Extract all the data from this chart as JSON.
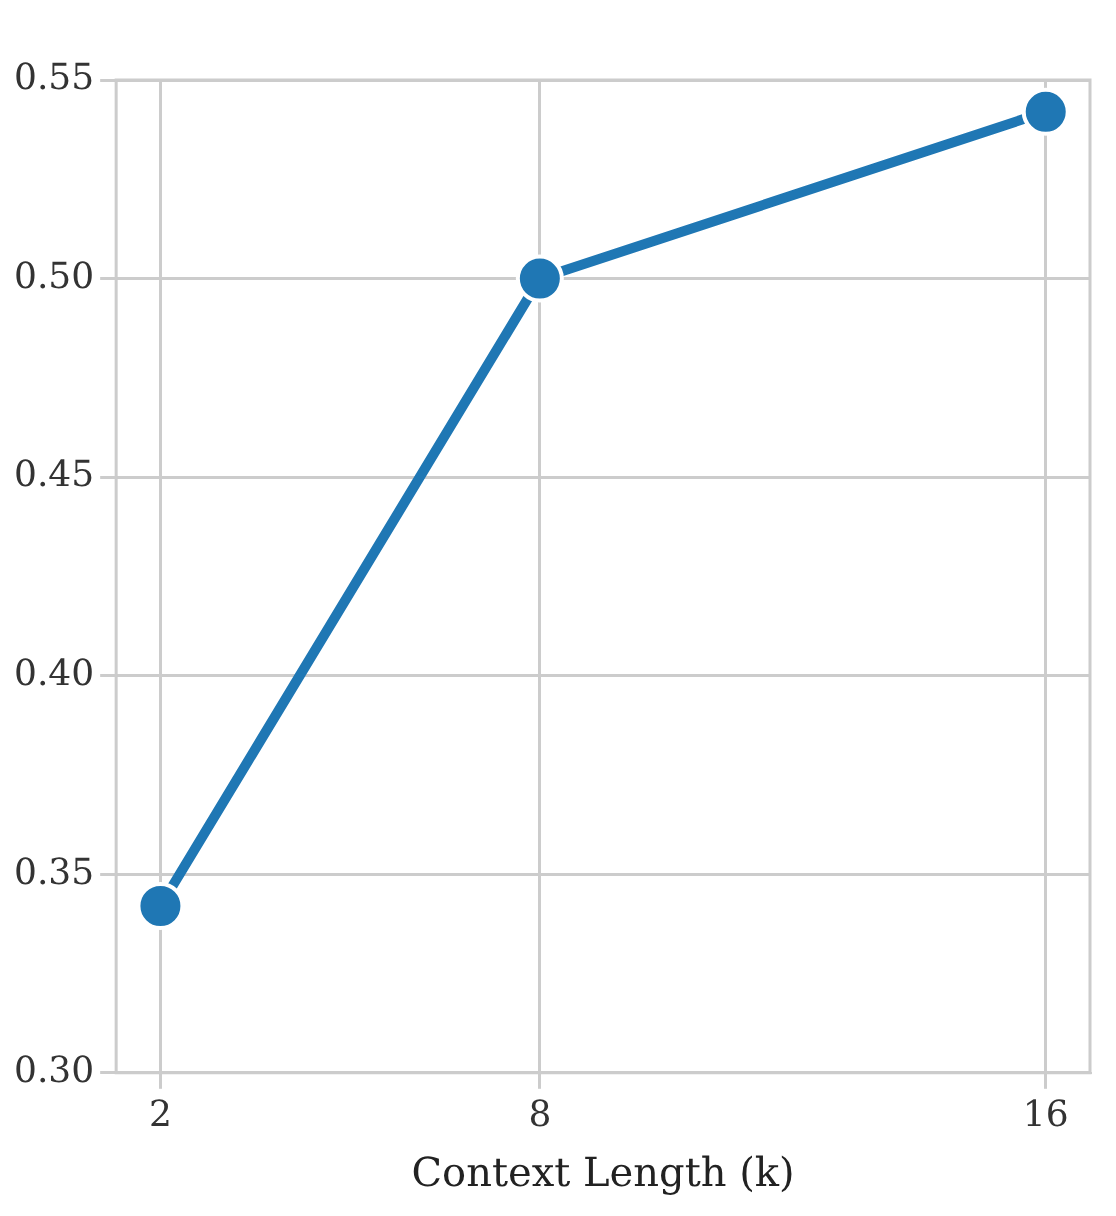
{
  "chart_data": {
    "type": "line",
    "xlabel": "Context Length (k)",
    "x": [
      2,
      8,
      16
    ],
    "series": [
      {
        "color": "#1f77b4",
        "values": [
          0.342,
          0.5,
          0.542
        ]
      }
    ],
    "xlim": [
      1.3,
      16.7
    ],
    "xticks": [
      2,
      8,
      16
    ],
    "ylim": [
      0.3,
      0.55
    ],
    "yticks": [
      {
        "value": 0.3,
        "label": "0.30"
      },
      {
        "value": 0.35,
        "label": "0.35"
      },
      {
        "value": 0.4,
        "label": "0.40"
      },
      {
        "value": 0.45,
        "label": "0.45"
      },
      {
        "value": 0.5,
        "label": "0.50"
      },
      {
        "value": 0.55,
        "label": "0.55"
      }
    ],
    "grid": true,
    "marker": "circle",
    "line_style": "solid",
    "legend": false
  }
}
